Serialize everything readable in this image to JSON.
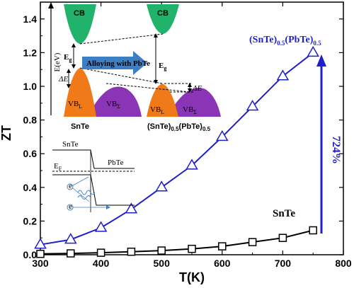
{
  "chart_data": {
    "type": "line",
    "xlabel": "T(K)",
    "ylabel": "ZT",
    "xlim": [
      300,
      800
    ],
    "ylim": [
      0,
      1.5
    ],
    "x_ticks": [
      "300",
      "400",
      "500",
      "600",
      "700",
      "800"
    ],
    "y_ticks": [
      "0.0",
      "0.2",
      "0.4",
      "0.6",
      "0.8",
      "1.0",
      "1.2",
      "1.4"
    ],
    "series": [
      {
        "name": "SnTe",
        "marker": "square",
        "color": "#000000",
        "x": [
          300,
          350,
          400,
          450,
          500,
          550,
          600,
          650,
          700,
          750
        ],
        "y": [
          0.005,
          0.008,
          0.012,
          0.018,
          0.025,
          0.035,
          0.05,
          0.075,
          0.1,
          0.145
        ]
      },
      {
        "name": "(SnTe)0.5(PbTe)0.5",
        "marker": "triangle",
        "color": "#1f1fcc",
        "x": [
          300,
          350,
          400,
          450,
          500,
          550,
          600,
          650,
          700,
          750
        ],
        "y": [
          0.06,
          0.09,
          0.16,
          0.27,
          0.4,
          0.53,
          0.7,
          0.88,
          1.06,
          1.2
        ]
      }
    ],
    "annotations": {
      "percent": "724%",
      "label_top": {
        "base": "(SnTe)",
        "sub1": "0.5",
        "mid": "(PbTe)",
        "sub2": "0.5"
      },
      "label_bottom": "SnTe"
    },
    "inset_band": {
      "cb": "CB",
      "eg": "E",
      "eg_sub": "g",
      "energy_axis": "E(eV)",
      "delta_e": "ΔE",
      "vb_l": "VB",
      "vb_l_sub": "L",
      "vb_sigma": "VB",
      "vb_sigma_sub": "Σ",
      "arrow_text": "Alloying with PbTe",
      "left_name": "SnTe",
      "right_name": {
        "base": "(SnTe)",
        "sub1": "0.5",
        "mid": "(PbTe)",
        "sub2": "0.5"
      }
    },
    "inset_interface": {
      "left": "SnTe",
      "right": "PbTe",
      "fermi": "E",
      "fermi_sub": "F",
      "carrier": "e"
    },
    "colors": {
      "cb": "#21b36b",
      "vb_l": "#f07a17",
      "vb_sigma": "#8a35b5",
      "arrow": "#3d7fc4",
      "blue": "#1f1fcc"
    }
  }
}
